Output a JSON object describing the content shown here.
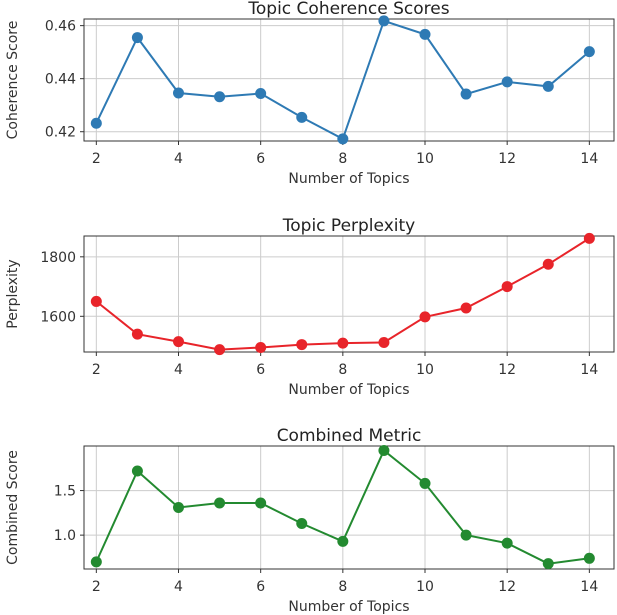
{
  "chart_data": [
    {
      "type": "line",
      "title": "Topic Coherence Scores",
      "xlabel": "Number of Topics",
      "ylabel": "Coherence Score",
      "x": [
        2,
        3,
        4,
        5,
        6,
        7,
        8,
        9,
        10,
        11,
        12,
        13,
        14
      ],
      "values": [
        0.4232,
        0.4555,
        0.4346,
        0.4332,
        0.4344,
        0.4254,
        0.4173,
        0.4618,
        0.4567,
        0.4342,
        0.4388,
        0.4371,
        0.4502
      ],
      "xlim": [
        1.7,
        14.6
      ],
      "ylim": [
        0.4165,
        0.4625
      ],
      "xticks": [
        2,
        4,
        6,
        8,
        10,
        12,
        14
      ],
      "yticks": [
        0.42,
        0.44,
        0.46
      ],
      "yticklabels": [
        "0.42",
        "0.44",
        "0.46"
      ],
      "color": "#2e7ab4",
      "grid": true
    },
    {
      "type": "line",
      "title": "Topic Perplexity",
      "xlabel": "Number of Topics",
      "ylabel": "Perplexity",
      "x": [
        2,
        3,
        4,
        5,
        6,
        7,
        8,
        9,
        10,
        11,
        12,
        13,
        14
      ],
      "values": [
        1650,
        1540,
        1515,
        1488,
        1495,
        1505,
        1510,
        1512,
        1598,
        1628,
        1700,
        1775,
        1862
      ],
      "xlim": [
        1.7,
        14.6
      ],
      "ylim": [
        1480,
        1870
      ],
      "xticks": [
        2,
        4,
        6,
        8,
        10,
        12,
        14
      ],
      "yticks": [
        1600,
        1800
      ],
      "yticklabels": [
        "1600",
        "1800"
      ],
      "color": "#e8242a",
      "grid": true
    },
    {
      "type": "line",
      "title": "Combined Metric",
      "xlabel": "Number of Topics",
      "ylabel": "Combined Score",
      "x": [
        2,
        3,
        4,
        5,
        6,
        7,
        8,
        9,
        10,
        11,
        12,
        13,
        14
      ],
      "values": [
        0.7,
        1.72,
        1.31,
        1.36,
        1.36,
        1.13,
        0.93,
        1.95,
        1.58,
        1.0,
        0.91,
        0.68,
        0.74
      ],
      "xlim": [
        1.7,
        14.6
      ],
      "ylim": [
        0.62,
        2.0
      ],
      "xticks": [
        2,
        4,
        6,
        8,
        10,
        12,
        14
      ],
      "yticks": [
        1.0,
        1.5
      ],
      "yticklabels": [
        "1.0",
        "1.5"
      ],
      "color": "#238a30",
      "grid": true
    }
  ]
}
